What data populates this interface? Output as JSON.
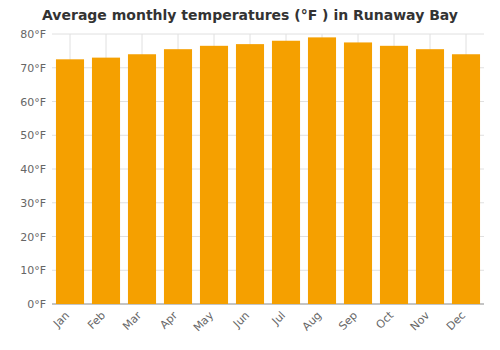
{
  "chart_data": {
    "type": "bar",
    "title": "Average monthly temperatures (°F ) in Runaway Bay",
    "categories": [
      "Jan",
      "Feb",
      "Mar",
      "Apr",
      "May",
      "Jun",
      "Jul",
      "Aug",
      "Sep",
      "Oct",
      "Nov",
      "Dec"
    ],
    "values": [
      72.5,
      73.0,
      74.0,
      75.5,
      76.5,
      77.0,
      78.0,
      79.0,
      77.5,
      76.5,
      75.5,
      74.0
    ],
    "color": "#F5A000",
    "ylim": [
      0,
      80
    ],
    "yticks": [
      {
        "value": 0,
        "label": "0°F"
      },
      {
        "value": 10,
        "label": "10°F"
      },
      {
        "value": 20,
        "label": "20°F"
      },
      {
        "value": 30,
        "label": "30°F"
      },
      {
        "value": 40,
        "label": "40°F"
      },
      {
        "value": 50,
        "label": "50°F"
      },
      {
        "value": 60,
        "label": "60°F"
      },
      {
        "value": 70,
        "label": "70°F"
      },
      {
        "value": 80,
        "label": "80°F"
      }
    ],
    "grid": true
  }
}
